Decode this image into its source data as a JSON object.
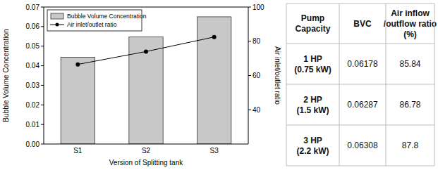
{
  "chart_data": {
    "type": "bar",
    "categories": [
      "S1",
      "S2",
      "S3"
    ],
    "x_label": "Version of Splitting tank",
    "y_label": "Bubble Volume Concentration",
    "y2_label": "Air inlet/outlet ratio",
    "ylim": [
      0,
      0.07
    ],
    "yticks": [
      {
        "value": 0,
        "label": "0.00"
      },
      0.01,
      0.02,
      0.03,
      0.04,
      0.05,
      0.06,
      0.07
    ],
    "y2lim": [
      20,
      100
    ],
    "y2ticks": [
      40,
      60,
      80,
      100
    ],
    "legend": "upper left",
    "series": [
      {
        "name": "Bubble Volume Concentration",
        "type": "bar",
        "color": "#c8c8c8",
        "values": [
          0.0443,
          0.0547,
          0.065
        ]
      },
      {
        "name": "Air inlet/outlet ratio",
        "type": "line",
        "axis": "y2",
        "color": "#000000",
        "marker": "circle",
        "values": [
          66.5,
          74,
          82.5
        ]
      }
    ]
  },
  "table": {
    "header": [
      [
        "Pump",
        "Capacity"
      ],
      [
        "BVC"
      ],
      [
        "Air inflow",
        "/outflow ratio",
        "(%)"
      ]
    ],
    "rows": [
      [
        [
          "1 HP",
          "(0.75 kW)"
        ],
        0.06178,
        85.84
      ],
      [
        [
          "2 HP",
          "(1.5 kW)"
        ],
        0.06287,
        86.78
      ],
      [
        [
          "3 HP",
          "(2.2 kW)"
        ],
        0.06308,
        87.8
      ]
    ]
  }
}
